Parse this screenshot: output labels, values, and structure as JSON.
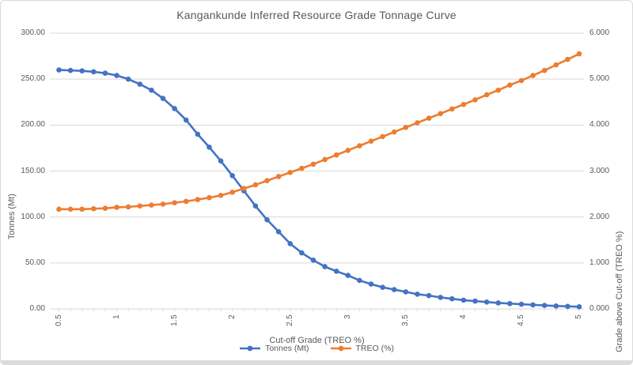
{
  "page": {
    "title": "Kangankunde Inferred Resource Grade Tonnage Curve"
  },
  "chart_data": {
    "type": "line",
    "title": "Kangankunde Inferred Resource Grade Tonnage Curve",
    "xlabel": "Cut-off Grade (TREO %)",
    "ylabel_left": "Tonnes (Mt)",
    "ylabel_right": "Grade above Cut-off (TREO %)",
    "grid": true,
    "legend_position": "bottom",
    "x": [
      0.5,
      0.6,
      0.7,
      0.8,
      0.9,
      1.0,
      1.1,
      1.2,
      1.3,
      1.4,
      1.5,
      1.6,
      1.7,
      1.8,
      1.9,
      2.0,
      2.1,
      2.2,
      2.3,
      2.4,
      2.5,
      2.6,
      2.7,
      2.8,
      2.9,
      3.0,
      3.1,
      3.2,
      3.3,
      3.4,
      3.5,
      3.6,
      3.7,
      3.8,
      3.9,
      4.0,
      4.1,
      4.2,
      4.3,
      4.4,
      4.5,
      4.6,
      4.7,
      4.8,
      4.9,
      5.0
    ],
    "x_tick_labels": [
      "0.5",
      "1",
      "1.5",
      "2",
      "2.5",
      "3",
      "3.5",
      "4",
      "4.5",
      "5"
    ],
    "x_tick_values": [
      0.5,
      1,
      1.5,
      2,
      2.5,
      3,
      3.5,
      4,
      4.5,
      5
    ],
    "left_axis": {
      "min": 0,
      "max": 300,
      "step": 50,
      "tick_labels": [
        "0.00",
        "50.00",
        "100.00",
        "150.00",
        "200.00",
        "250.00",
        "300.00"
      ]
    },
    "right_axis": {
      "min": 0,
      "max": 6,
      "step": 1,
      "tick_labels": [
        "0.000",
        "1.000",
        "2.000",
        "3.000",
        "4.000",
        "5.000",
        "6.000"
      ]
    },
    "series": [
      {
        "name": "Tonnes (Mt)",
        "axis": "left",
        "color": "#4472C4",
        "values": [
          260,
          259.5,
          259,
          258,
          256.5,
          254,
          250,
          244.5,
          238,
          229,
          218,
          205.5,
          190,
          176,
          161,
          145,
          128.5,
          112,
          97,
          84,
          71,
          61,
          53,
          46,
          41,
          36.5,
          31,
          27,
          23.5,
          21,
          18.5,
          16,
          14.5,
          12.5,
          11,
          9.5,
          8.5,
          7.5,
          6.5,
          5.8,
          5.1,
          4.4,
          3.8,
          3.2,
          2.8,
          2.3
        ]
      },
      {
        "name": "TREO (%)",
        "axis": "right",
        "color": "#ED7D31",
        "values": [
          2.17,
          2.17,
          2.17,
          2.18,
          2.19,
          2.21,
          2.22,
          2.24,
          2.26,
          2.28,
          2.31,
          2.34,
          2.38,
          2.42,
          2.47,
          2.54,
          2.62,
          2.7,
          2.79,
          2.88,
          2.97,
          3.06,
          3.15,
          3.25,
          3.35,
          3.45,
          3.55,
          3.65,
          3.75,
          3.85,
          3.95,
          4.05,
          4.15,
          4.25,
          4.35,
          4.45,
          4.55,
          4.66,
          4.76,
          4.87,
          4.97,
          5.08,
          5.19,
          5.31,
          5.43,
          5.55
        ]
      }
    ],
    "colors": {
      "gridline": "#d9d9d9",
      "axis_line": "#d9d9d9",
      "text": "#595959"
    }
  }
}
